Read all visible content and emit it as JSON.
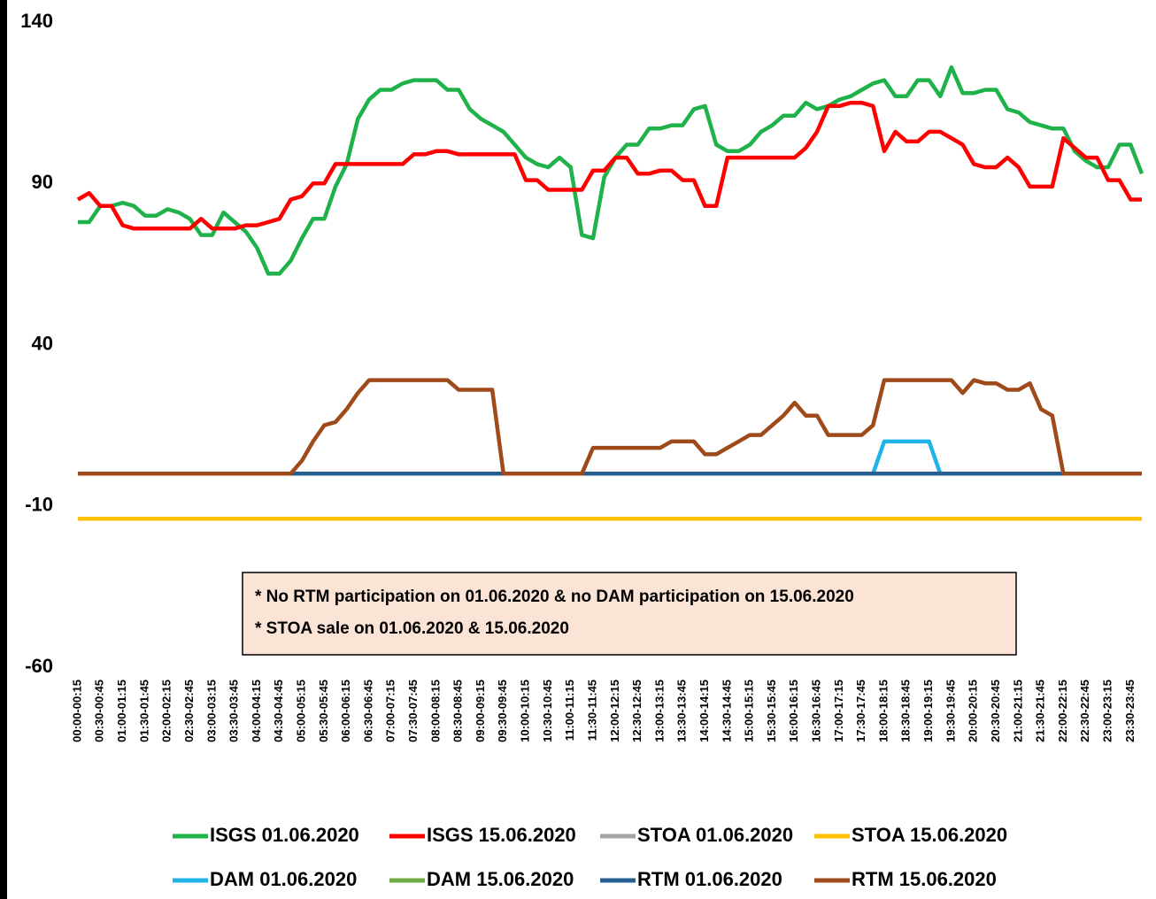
{
  "chart_data": {
    "type": "line",
    "categories": [
      "00:00-00:15",
      null,
      "00:30-00:45",
      null,
      "01:00-01:15",
      null,
      "01:30-01:45",
      null,
      "02:00-02:15",
      null,
      "02:30-02:45",
      null,
      "03:00-03:15",
      null,
      "03:30-03:45",
      null,
      "04:00-04:15",
      null,
      "04:30-04:45",
      null,
      "05:00-05:15",
      null,
      "05:30-05:45",
      null,
      "06:00-06:15",
      null,
      "06:30-06:45",
      null,
      "07:00-07:15",
      null,
      "07:30-07:45",
      null,
      "08:00-08:15",
      null,
      "08:30-08:45",
      null,
      "09:00-09:15",
      null,
      "09:30-09:45",
      null,
      "10:00-10:15",
      null,
      "10:30-10:45",
      null,
      "11:00-11:15",
      null,
      "11:30-11:45",
      null,
      "12:00-12:15",
      null,
      "12:30-12:45",
      null,
      "13:00-13:15",
      null,
      "13:30-13:45",
      null,
      "14:00-14:15",
      null,
      "14:30-14:45",
      null,
      "15:00-15:15",
      null,
      "15:30-15:45",
      null,
      "16:00-16:15",
      null,
      "16:30-16:45",
      null,
      "17:00-17:15",
      null,
      "17:30-17:45",
      null,
      "18:00-18:15",
      null,
      "18:30-18:45",
      null,
      "19:00-19:15",
      null,
      "19:30-19:45",
      null,
      "20:00-20:15",
      null,
      "20:30-20:45",
      null,
      "21:00-21:15",
      null,
      "21:30-21:45",
      null,
      "22:00-22:15",
      null,
      "22:30-22:45",
      null,
      "23:00-23:15",
      null,
      "23:30-23:45",
      null
    ],
    "ylim": [
      -60,
      140
    ],
    "yticks": [
      -60,
      -10,
      40,
      90,
      140
    ],
    "grid": false,
    "annotations": [
      "* No RTM participation on 01.06.2020 & no DAM participation on 15.06.2020",
      "* STOA sale on 01.06.2020 & 15.06.2020"
    ],
    "series": [
      {
        "name": "ISGS 01.06.2020",
        "color": "#1fb24a",
        "values": [
          78,
          78,
          83,
          83,
          84,
          83,
          80,
          80,
          82,
          81,
          79,
          74,
          74,
          81,
          78,
          75,
          70,
          62,
          62,
          66,
          73,
          79,
          79,
          89,
          96,
          110,
          116,
          119,
          119,
          121,
          122,
          122,
          122,
          119,
          119,
          113,
          110,
          108,
          106,
          102,
          98,
          96,
          95,
          98,
          95,
          74,
          73,
          92,
          98,
          102,
          102,
          107,
          107,
          108,
          108,
          113,
          114,
          102,
          100,
          100,
          102,
          106,
          108,
          111,
          111,
          115,
          113,
          114,
          116,
          117,
          119,
          121,
          122,
          117,
          117,
          122,
          122,
          117,
          126,
          118,
          118,
          119,
          119,
          113,
          112,
          109,
          108,
          107,
          107,
          100,
          97,
          95,
          95,
          102,
          102,
          93
        ]
      },
      {
        "name": "ISGS 15.06.2020",
        "color": "#ff0000",
        "values": [
          85,
          87,
          83,
          83,
          77,
          76,
          76,
          76,
          76,
          76,
          76,
          79,
          76,
          76,
          76,
          77,
          77,
          78,
          79,
          85,
          86,
          90,
          90,
          96,
          96,
          96,
          96,
          96,
          96,
          96,
          99,
          99,
          100,
          100,
          99,
          99,
          99,
          99,
          99,
          99,
          91,
          91,
          88,
          88,
          88,
          88,
          94,
          94,
          98,
          98,
          93,
          93,
          94,
          94,
          91,
          91,
          83,
          83,
          98,
          98,
          98,
          98,
          98,
          98,
          98,
          101,
          106,
          114,
          114,
          115,
          115,
          114,
          100,
          106,
          103,
          103,
          106,
          106,
          104,
          102,
          96,
          95,
          95,
          98,
          95,
          89,
          89,
          89,
          104,
          101,
          98,
          98,
          91,
          91,
          85,
          85
        ]
      },
      {
        "name": "STOA 01.06.2020",
        "color": "#a5a5a5",
        "values": [
          -14,
          -14,
          -14,
          -14,
          -14,
          -14,
          -14,
          -14,
          -14,
          -14,
          -14,
          -14,
          -14,
          -14,
          -14,
          -14,
          -14,
          -14,
          -14,
          -14,
          -14,
          -14,
          -14,
          -14,
          -14,
          -14,
          -14,
          -14,
          -14,
          -14,
          -14,
          -14,
          -14,
          -14,
          -14,
          -14,
          -14,
          -14,
          -14,
          -14,
          -14,
          -14,
          -14,
          -14,
          -14,
          -14,
          -14,
          -14,
          -14,
          -14,
          -14,
          -14,
          -14,
          -14,
          -14,
          -14,
          -14,
          -14,
          -14,
          -14,
          -14,
          -14,
          -14,
          -14,
          -14,
          -14,
          -14,
          -14,
          -14,
          -14,
          -14,
          -14,
          -14,
          -14,
          -14,
          -14,
          -14,
          -14,
          -14,
          -14,
          -14,
          -14,
          -14,
          -14,
          -14,
          -14,
          -14,
          -14,
          -14,
          -14,
          -14,
          -14,
          -14,
          -14,
          -14,
          -14
        ]
      },
      {
        "name": "STOA 15.06.2020",
        "color": "#ffc000",
        "values": [
          -14,
          -14,
          -14,
          -14,
          -14,
          -14,
          -14,
          -14,
          -14,
          -14,
          -14,
          -14,
          -14,
          -14,
          -14,
          -14,
          -14,
          -14,
          -14,
          -14,
          -14,
          -14,
          -14,
          -14,
          -14,
          -14,
          -14,
          -14,
          -14,
          -14,
          -14,
          -14,
          -14,
          -14,
          -14,
          -14,
          -14,
          -14,
          -14,
          -14,
          -14,
          -14,
          -14,
          -14,
          -14,
          -14,
          -14,
          -14,
          -14,
          -14,
          -14,
          -14,
          -14,
          -14,
          -14,
          -14,
          -14,
          -14,
          -14,
          -14,
          -14,
          -14,
          -14,
          -14,
          -14,
          -14,
          -14,
          -14,
          -14,
          -14,
          -14,
          -14,
          -14,
          -14,
          -14,
          -14,
          -14,
          -14,
          -14,
          -14,
          -14,
          -14,
          -14,
          -14,
          -14,
          -14,
          -14,
          -14,
          -14,
          -14,
          -14,
          -14,
          -14,
          -14,
          -14,
          -14
        ]
      },
      {
        "name": "DAM 01.06.2020",
        "color": "#1fb3e8",
        "values": [
          0,
          0,
          0,
          0,
          0,
          0,
          0,
          0,
          0,
          0,
          0,
          0,
          0,
          0,
          0,
          0,
          0,
          0,
          0,
          0,
          0,
          0,
          0,
          0,
          0,
          0,
          0,
          0,
          0,
          0,
          0,
          0,
          0,
          0,
          0,
          0,
          0,
          0,
          0,
          0,
          0,
          0,
          0,
          0,
          0,
          0,
          0,
          0,
          0,
          0,
          0,
          0,
          0,
          0,
          0,
          0,
          0,
          0,
          0,
          0,
          0,
          0,
          0,
          0,
          0,
          0,
          0,
          0,
          0,
          0,
          0,
          0,
          10,
          10,
          10,
          10,
          10,
          0,
          0,
          0,
          0,
          0,
          0,
          0,
          0,
          0,
          0,
          0,
          0,
          0,
          0,
          0,
          0,
          0,
          0,
          0
        ]
      },
      {
        "name": "DAM 15.06.2020",
        "color": "#70ad47",
        "values": [
          0,
          0,
          0,
          0,
          0,
          0,
          0,
          0,
          0,
          0,
          0,
          0,
          0,
          0,
          0,
          0,
          0,
          0,
          0,
          0,
          0,
          0,
          0,
          0,
          0,
          0,
          0,
          0,
          0,
          0,
          0,
          0,
          0,
          0,
          0,
          0,
          0,
          0,
          0,
          0,
          0,
          0,
          0,
          0,
          0,
          0,
          0,
          0,
          0,
          0,
          0,
          0,
          0,
          0,
          0,
          0,
          0,
          0,
          0,
          0,
          0,
          0,
          0,
          0,
          0,
          0,
          0,
          0,
          0,
          0,
          0,
          0,
          0,
          0,
          0,
          0,
          0,
          0,
          0,
          0,
          0,
          0,
          0,
          0,
          0,
          0,
          0,
          0,
          0,
          0,
          0,
          0,
          0,
          0,
          0,
          0
        ]
      },
      {
        "name": "RTM 01.06.2020",
        "color": "#255e91",
        "values": [
          0,
          0,
          0,
          0,
          0,
          0,
          0,
          0,
          0,
          0,
          0,
          0,
          0,
          0,
          0,
          0,
          0,
          0,
          0,
          0,
          0,
          0,
          0,
          0,
          0,
          0,
          0,
          0,
          0,
          0,
          0,
          0,
          0,
          0,
          0,
          0,
          0,
          0,
          0,
          0,
          0,
          0,
          0,
          0,
          0,
          0,
          0,
          0,
          0,
          0,
          0,
          0,
          0,
          0,
          0,
          0,
          0,
          0,
          0,
          0,
          0,
          0,
          0,
          0,
          0,
          0,
          0,
          0,
          0,
          0,
          0,
          0,
          0,
          0,
          0,
          0,
          0,
          0,
          0,
          0,
          0,
          0,
          0,
          0,
          0,
          0,
          0,
          0,
          0,
          0,
          0,
          0,
          0,
          0,
          0,
          0
        ]
      },
      {
        "name": "RTM 15.06.2020",
        "color": "#9e4a1a",
        "values": [
          0,
          0,
          0,
          0,
          0,
          0,
          0,
          0,
          0,
          0,
          0,
          0,
          0,
          0,
          0,
          0,
          0,
          0,
          0,
          0,
          4,
          10,
          15,
          16,
          20,
          25,
          29,
          29,
          29,
          29,
          29,
          29,
          29,
          29,
          26,
          26,
          26,
          26,
          0,
          0,
          0,
          0,
          0,
          0,
          0,
          0,
          8,
          8,
          8,
          8,
          8,
          8,
          8,
          10,
          10,
          10,
          6,
          6,
          8,
          10,
          12,
          12,
          15,
          18,
          22,
          18,
          18,
          12,
          12,
          12,
          12,
          15,
          29,
          29,
          29,
          29,
          29,
          29,
          29,
          25,
          29,
          28,
          28,
          26,
          26,
          28,
          20,
          18,
          0,
          0,
          0,
          0,
          0,
          0,
          0,
          0
        ]
      }
    ]
  }
}
